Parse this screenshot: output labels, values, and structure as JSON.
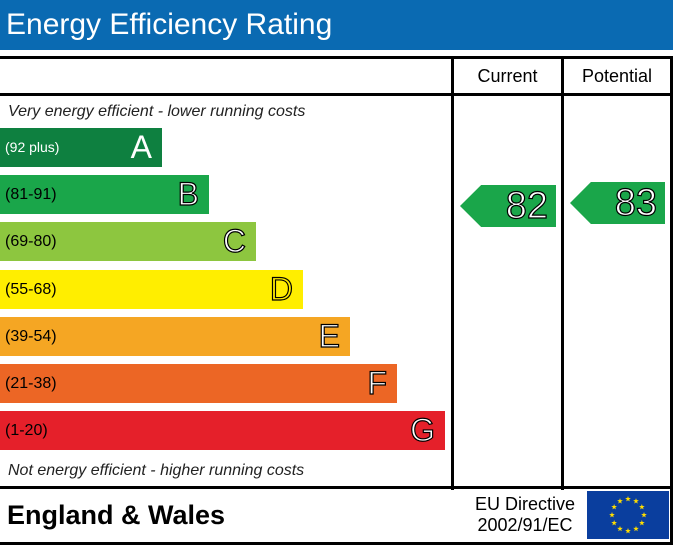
{
  "title": "Energy Efficiency Rating",
  "columns": {
    "current": "Current",
    "potential": "Potential"
  },
  "notes": {
    "top": "Very energy efficient - lower running costs",
    "bottom": "Not energy efficient - higher running costs"
  },
  "colors": {
    "title_bg": "#0a6ab2",
    "A": "#0e8040",
    "B": "#1aa64a",
    "C": "#8dc63f",
    "D": "#ffee00",
    "E": "#f5a623",
    "F": "#ec6625",
    "G": "#e5202a",
    "current_arrow": "#1aa64a",
    "potential_arrow": "#1aa64a",
    "eu_flag": "#0a3e9e",
    "eu_star": "#ffdd00"
  },
  "chart_data": {
    "type": "bar",
    "categories": [
      "A",
      "B",
      "C",
      "D",
      "E",
      "F",
      "G"
    ],
    "bands": [
      {
        "letter": "A",
        "range": "(92 plus)",
        "min": 92,
        "max": 100
      },
      {
        "letter": "B",
        "range": "(81-91)",
        "min": 81,
        "max": 91
      },
      {
        "letter": "C",
        "range": "(69-80)",
        "min": 69,
        "max": 80
      },
      {
        "letter": "D",
        "range": "(55-68)",
        "min": 55,
        "max": 68
      },
      {
        "letter": "E",
        "range": "(39-54)",
        "min": 39,
        "max": 54
      },
      {
        "letter": "F",
        "range": "(21-38)",
        "min": 21,
        "max": 38
      },
      {
        "letter": "G",
        "range": "(1-20)",
        "min": 1,
        "max": 20
      }
    ],
    "series": [
      {
        "name": "Current",
        "value": 82,
        "band": "B"
      },
      {
        "name": "Potential",
        "value": 83,
        "band": "B"
      }
    ]
  },
  "footer": {
    "country": "England & Wales",
    "directive_line1": "EU Directive",
    "directive_line2": "2002/91/EC"
  },
  "icons": {
    "eu_flag": "eu-flag-icon"
  }
}
